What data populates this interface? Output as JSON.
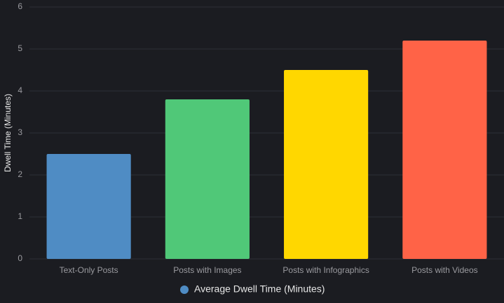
{
  "chart_data": {
    "type": "bar",
    "y_label": "Dwell Time (Minutes)",
    "categories": [
      "Text-Only Posts",
      "Posts with Images",
      "Posts with Infographics",
      "Posts with Videos"
    ],
    "series": [
      {
        "name": "Average Dwell Time (Minutes)",
        "values": [
          2.5,
          3.8,
          4.5,
          5.2
        ],
        "colors": [
          "#4f8cc4",
          "#50c878",
          "#ffd700",
          "#ff6347"
        ]
      }
    ],
    "ylim": [
      0,
      6
    ],
    "yticks": [
      0,
      1,
      2,
      3,
      4,
      5,
      6
    ],
    "grid": true,
    "legend": "bottom"
  }
}
